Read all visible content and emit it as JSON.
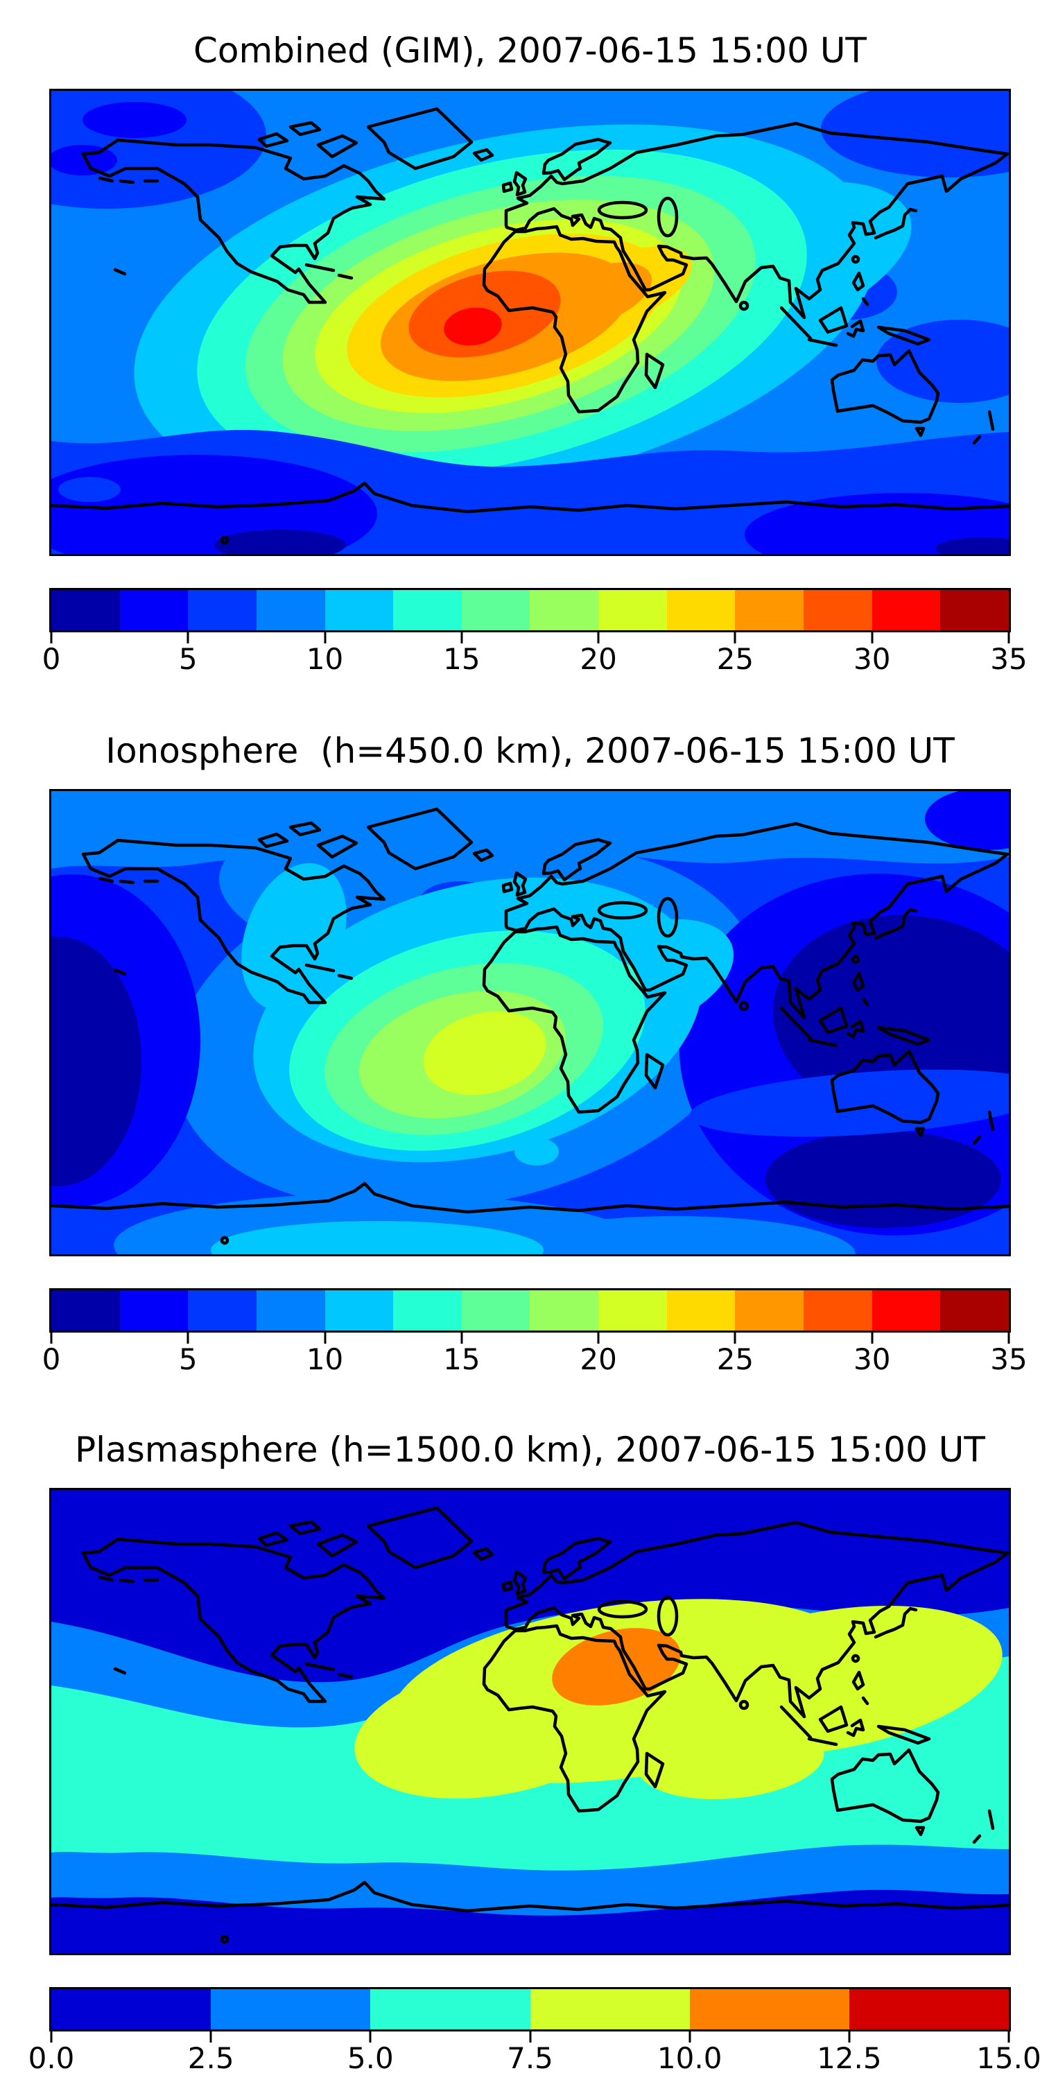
{
  "page": {
    "background": "#ffffff"
  },
  "palette_14": [
    "#0000A9",
    "#0000FB",
    "#0037FF",
    "#0080FF",
    "#00C8FF",
    "#24FFD4",
    "#5EFF99",
    "#99FF5E",
    "#D4FF24",
    "#FFDA00",
    "#FF9700",
    "#FF5300",
    "#FF0300",
    "#A90000"
  ],
  "palette_6": [
    "#0000D4",
    "#0080FF",
    "#2AFFD4",
    "#D4FF2A",
    "#FF8000",
    "#D40000"
  ],
  "panels": [
    {
      "id": "combined",
      "title": "Combined (GIM), 2007-06-15 15:00 UT",
      "colorbar": {
        "min": 0,
        "max": 35,
        "interval": 2.5,
        "palette_key": "palette_14",
        "tick_labels": [
          "0",
          "5",
          "10",
          "15",
          "20",
          "25",
          "30",
          "35"
        ]
      }
    },
    {
      "id": "ionosphere",
      "title": "Ionosphere  (h=450.0 km), 2007-06-15 15:00 UT",
      "colorbar": {
        "min": 0,
        "max": 35,
        "interval": 2.5,
        "palette_key": "palette_14",
        "tick_labels": [
          "0",
          "5",
          "10",
          "15",
          "20",
          "25",
          "30",
          "35"
        ]
      }
    },
    {
      "id": "plasmasphere",
      "title": "Plasmasphere (h=1500.0 km), 2007-06-15 15:00 UT",
      "colorbar": {
        "min": 0,
        "max": 15,
        "interval": 2.5,
        "palette_key": "palette_6",
        "tick_labels": [
          "0.0",
          "2.5",
          "5.0",
          "7.5",
          "10.0",
          "12.5",
          "15.0"
        ]
      }
    }
  ],
  "chart_data": [
    {
      "type": "heatmap",
      "variant": "filled-contour world map with coastlines (TEC map)",
      "title": "Combined (GIM), 2007-06-15 15:00 UT",
      "projection": "equirectangular, lon -180..180, lat -90..90",
      "colormap": "jet, 14 discrete bands",
      "value_range": [
        0,
        35
      ],
      "contour_interval": 2.5,
      "colorbar_ticks": [
        0,
        5,
        10,
        15,
        20,
        25,
        30,
        35
      ],
      "maximum": {
        "band": [
          30,
          32.5
        ],
        "location": "equatorial Atlantic just east of NE Brazil (about 25W-10W, 0-10S)"
      },
      "pattern": "one large anomaly elongated SW-NE from central South America across the equatorial Atlantic and West/North Africa toward the Middle East; concentric bands fall from 30 to 10 outward; background oceans 7.5-10; lows 2.5-5 with small 0-2.5 cores in the Southern Ocean belt, south-east Pacific and two Arctic patches near the top-left corner; darker 5-7.5 patches in the west Pacific and top-right corner"
    },
    {
      "type": "heatmap",
      "variant": "filled-contour world map with coastlines (TEC map)",
      "title": "Ionosphere  (h=450.0 km), 2007-06-15 15:00 UT",
      "projection": "equirectangular, lon -180..180, lat -90..90",
      "colormap": "jet, 14 discrete bands",
      "value_range": [
        0,
        35
      ],
      "contour_interval": 2.5,
      "colorbar_ticks": [
        0,
        5,
        10,
        15,
        20,
        25,
        30,
        35
      ],
      "maximum": {
        "band": [
          20,
          22.5
        ],
        "location": "eastern South America / SW Atlantic (about 60W-30W, 25S-0)"
      },
      "pattern": "central blob of 10-20 over South America and the South Atlantic reaching West Africa and Arabia; azure 7.5-10 band across the Arctic and around the blob; deep minima 0-5 over the central Pacific at the left edge and a very large 0-5 region over the Indian Ocean / west Pacific right half; small dark 5-7.5 oval in the North Atlantic; lighter 7.5-12.5 band near Antarctica at bottom-centre"
    },
    {
      "type": "heatmap",
      "variant": "filled-contour world map with coastlines (TEC map)",
      "title": "Plasmasphere (h=1500.0 km), 2007-06-15 15:00 UT",
      "projection": "equirectangular, lon -180..180, lat -90..90",
      "colormap": "jet, 6 discrete bands",
      "value_range": [
        0,
        15
      ],
      "contour_interval": 2.5,
      "colorbar_ticks": [
        0.0,
        2.5,
        5.0,
        7.5,
        10.0,
        12.5,
        15.0
      ],
      "maximum": {
        "band": [
          10,
          12.5
        ],
        "location": "NE Africa / Horn of Africa / western Arabian Sea (about 20E-60E, 10S-20N)"
      },
      "pattern": "zonally banded field: 0-2.5 poleward of about 50 deg in both hemispheres; 2.5-5 azure sub-polar ribbons; broad 5-7.5 turquoise mid-latitude belt; wide 7.5-10 yellow-green tropical band stretching from South America across Africa, Arabia, India, SE Asia to Japan; single 10-12.5 orange cell over NE Africa and Arabia; 12.5-15 not present on map"
    }
  ]
}
